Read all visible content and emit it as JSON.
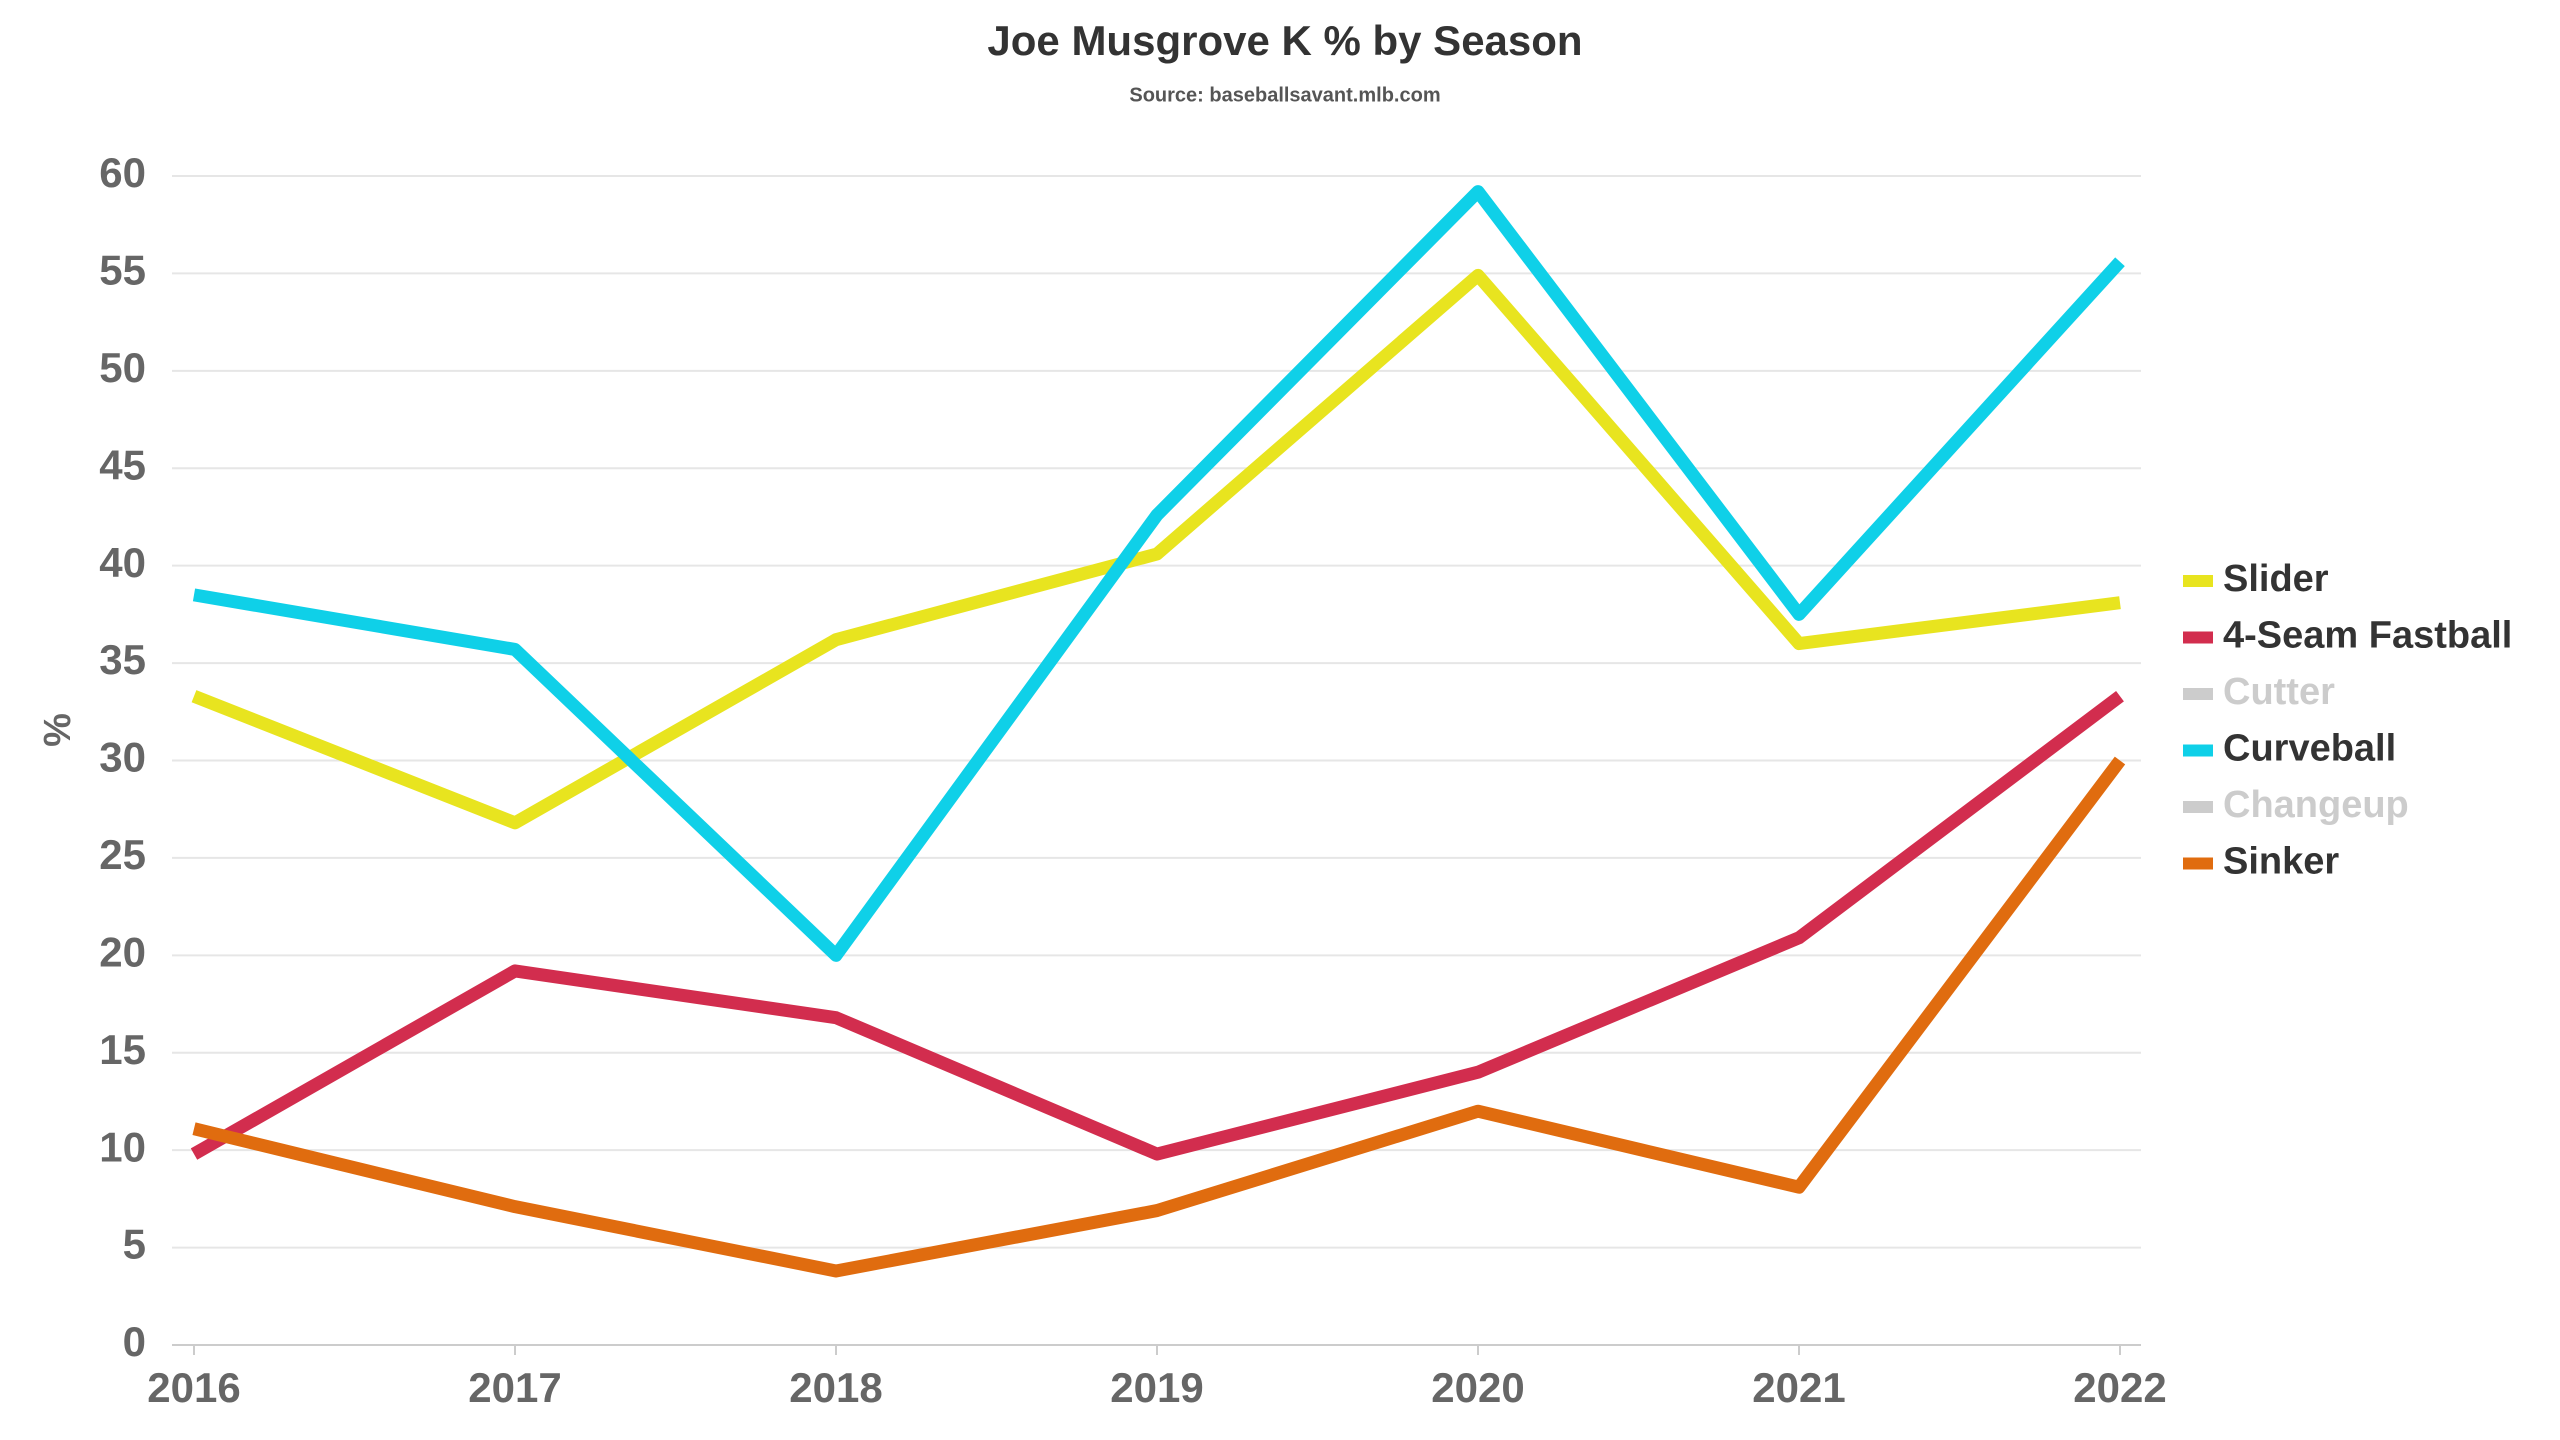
{
  "chart_data": {
    "type": "line",
    "title": "Joe Musgrove K % by Season",
    "subtitle": "Source: baseballsavant.mlb.com",
    "y_label": "%",
    "categories": [
      "2016",
      "2017",
      "2018",
      "2019",
      "2020",
      "2021",
      "2022"
    ],
    "series": [
      {
        "name": "Slider",
        "color": "#e8e41f",
        "values": [
          33.3,
          26.8,
          36.2,
          40.6,
          54.9,
          36.0,
          38.1
        ]
      },
      {
        "name": "4-Seam Fastball",
        "color": "#d22d4e",
        "values": [
          9.8,
          19.2,
          16.8,
          9.8,
          14.0,
          20.9,
          33.3
        ]
      },
      {
        "name": "Cutter",
        "color": "#cccccc",
        "hidden": true,
        "values": [
          null,
          null,
          null,
          null,
          null,
          null,
          null
        ]
      },
      {
        "name": "Curveball",
        "color": "#0fd0e8",
        "values": [
          38.5,
          35.7,
          20.0,
          42.6,
          59.2,
          37.5,
          55.6
        ]
      },
      {
        "name": "Changeup",
        "color": "#cccccc",
        "hidden": true,
        "values": [
          null,
          null,
          null,
          null,
          null,
          null,
          null
        ]
      },
      {
        "name": "Sinker",
        "color": "#e06c0f",
        "values": [
          11.1,
          7.1,
          3.8,
          6.9,
          12.0,
          8.1,
          30.0
        ]
      }
    ],
    "ylim": [
      0,
      60
    ],
    "yticks": [
      0,
      5,
      10,
      15,
      20,
      25,
      30,
      35,
      40,
      45,
      50,
      55,
      60
    ],
    "grid": true,
    "legend": "right"
  }
}
